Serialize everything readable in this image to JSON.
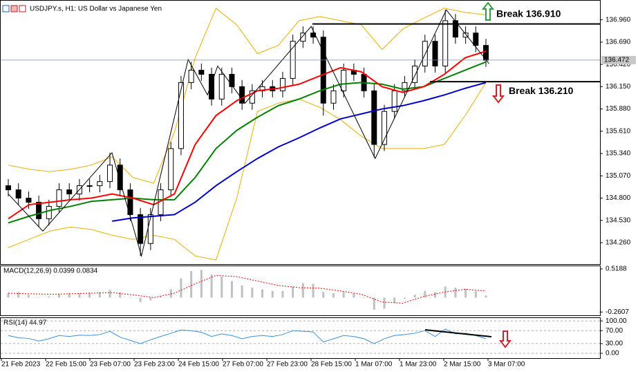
{
  "chart_data": [
    {
      "type": "candlestick",
      "title": "USDJPY.s, H1:  US Dollar vs Japanese Yen",
      "open": [
        134.95,
        134.9,
        134.8,
        134.75,
        134.55,
        134.7,
        134.9,
        134.85,
        134.95,
        134.95,
        135.0,
        135.2,
        134.9,
        134.6,
        134.25,
        134.6,
        134.9,
        135.4,
        136.2,
        136.35,
        136.3,
        136.0,
        136.3,
        136.15,
        135.95,
        136.1,
        136.15,
        136.1,
        136.25,
        136.7,
        136.8,
        136.75,
        135.95,
        136.1,
        136.35,
        136.3,
        136.1,
        135.45,
        135.85,
        136.1,
        136.2,
        136.4,
        136.7,
        136.4,
        136.95,
        136.75,
        136.8,
        136.65
      ],
      "high": [
        135.03,
        134.98,
        134.88,
        134.83,
        134.78,
        134.98,
        134.98,
        135.03,
        135.03,
        135.08,
        135.35,
        135.28,
        134.98,
        134.68,
        134.68,
        134.98,
        135.48,
        136.28,
        136.45,
        136.43,
        136.38,
        136.38,
        136.38,
        136.23,
        136.18,
        136.23,
        136.23,
        136.33,
        136.78,
        136.88,
        136.88,
        136.83,
        136.18,
        136.43,
        136.43,
        136.38,
        136.18,
        135.93,
        136.18,
        136.28,
        136.48,
        136.78,
        136.78,
        137.08,
        137.03,
        136.88,
        136.88,
        136.73
      ],
      "low": [
        134.82,
        134.72,
        134.67,
        134.45,
        134.47,
        134.62,
        134.77,
        134.77,
        134.87,
        134.87,
        134.92,
        134.82,
        134.52,
        134.1,
        134.17,
        134.52,
        134.82,
        135.32,
        136.12,
        136.22,
        135.92,
        135.92,
        136.07,
        135.87,
        135.87,
        136.02,
        136.02,
        136.02,
        136.17,
        136.62,
        136.67,
        135.8,
        135.87,
        136.02,
        136.22,
        136.02,
        135.29,
        135.37,
        135.77,
        136.02,
        136.12,
        136.32,
        136.32,
        136.32,
        136.67,
        136.67,
        136.57,
        136.39
      ],
      "close": [
        134.9,
        134.8,
        134.75,
        134.55,
        134.7,
        134.9,
        134.85,
        134.95,
        134.95,
        135.0,
        135.2,
        134.9,
        134.6,
        134.25,
        134.6,
        134.9,
        135.4,
        136.2,
        136.35,
        136.3,
        136.0,
        136.3,
        136.15,
        135.95,
        136.1,
        136.15,
        136.1,
        136.25,
        136.7,
        136.8,
        136.75,
        135.95,
        136.1,
        136.35,
        136.3,
        136.1,
        135.45,
        135.85,
        136.1,
        136.2,
        136.4,
        136.7,
        136.4,
        136.95,
        136.75,
        136.8,
        136.65,
        136.47
      ],
      "up_color": "#ffffff",
      "down_color": "#000000",
      "series": [
        {
          "color": "#e8b000",
          "values": [
            135.2,
            135.15,
            135.12,
            135.15,
            135.2,
            135.3,
            135.05,
            134.98,
            135.6,
            136.5,
            137.1,
            136.9,
            136.55,
            136.65,
            136.95,
            137.0,
            136.95,
            136.9,
            136.6,
            136.85,
            136.98,
            137.1,
            137.05,
            137.02
          ]
        },
        {
          "color": "#e8b000",
          "values": [
            134.2,
            134.3,
            134.4,
            134.45,
            134.42,
            134.35,
            134.3,
            134.35,
            134.3,
            134.1,
            134.05,
            134.8,
            135.85,
            135.95,
            136.0,
            135.9,
            135.75,
            135.55,
            135.4,
            135.4,
            135.4,
            135.45,
            135.8,
            136.2
          ]
        },
        {
          "color": "#0000c8",
          "values": [
            null,
            null,
            null,
            null,
            null,
            134.52,
            134.56,
            134.58,
            134.6,
            134.75,
            134.95,
            135.12,
            135.28,
            135.42,
            135.53,
            135.65,
            135.76,
            135.82,
            135.88,
            135.92,
            135.98,
            136.05,
            136.13,
            136.2
          ]
        },
        {
          "color": "#008000",
          "values": [
            134.5,
            134.58,
            134.65,
            134.7,
            134.76,
            134.78,
            134.8,
            134.78,
            134.78,
            135.05,
            135.4,
            135.62,
            135.78,
            135.92,
            136.0,
            136.1,
            136.18,
            136.2,
            136.18,
            136.12,
            136.15,
            136.25,
            136.35,
            136.45
          ]
        },
        {
          "color": "#ff0000",
          "values": [
            134.55,
            134.72,
            134.75,
            134.78,
            134.8,
            134.85,
            134.8,
            134.72,
            134.85,
            135.45,
            135.8,
            135.98,
            136.1,
            136.13,
            136.18,
            136.28,
            136.38,
            136.33,
            136.15,
            136.08,
            136.15,
            136.3,
            136.5,
            136.58
          ]
        }
      ],
      "zigzag": {
        "x": [
          0,
          3.4,
          10.2,
          13.1,
          17.7,
          19.6,
          20.6,
          23.3,
          29.8,
          36.1,
          43.1,
          47.3
        ],
        "values": [
          134.85,
          134.4,
          135.35,
          134.1,
          136.48,
          136.05,
          136.4,
          135.95,
          136.88,
          135.28,
          137.08,
          136.43
        ]
      },
      "levels": [
        {
          "value": 136.91,
          "label": "Break 136.910"
        },
        {
          "value": 136.21,
          "label": "Break 136.210"
        }
      ],
      "last_price": {
        "value": 136.472,
        "label": "136.472"
      },
      "ylim": [
        134.0,
        137.2
      ],
      "yticks": [
        {
          "value": 136.96,
          "label": "136.960"
        },
        {
          "value": 136.69,
          "label": "136.690"
        },
        {
          "value": 136.42,
          "label": "136.420"
        },
        {
          "value": 136.15,
          "label": "136.150"
        },
        {
          "value": 135.88,
          "label": "135.880"
        },
        {
          "value": 135.61,
          "label": "135.610"
        },
        {
          "value": 135.34,
          "label": "135.340"
        },
        {
          "value": 135.07,
          "label": "135.070"
        },
        {
          "value": 134.8,
          "label": "134.800"
        },
        {
          "value": 134.53,
          "label": "134.530"
        },
        {
          "value": 134.26,
          "label": "134.260"
        }
      ]
    },
    {
      "type": "bar",
      "title": "MACD(12,26,9) 0.0399 0.0834",
      "values": [
        0.08,
        0.1,
        0.05,
        0.0,
        0.02,
        0.06,
        0.08,
        0.08,
        0.09,
        0.1,
        0.14,
        0.1,
        0.0,
        -0.08,
        -0.05,
        0.02,
        0.15,
        0.35,
        0.48,
        0.5,
        0.42,
        0.38,
        0.3,
        0.22,
        0.18,
        0.15,
        0.12,
        0.12,
        0.2,
        0.26,
        0.25,
        0.1,
        0.08,
        0.1,
        0.08,
        0.0,
        -0.22,
        -0.2,
        -0.1,
        -0.02,
        0.05,
        0.12,
        0.1,
        0.2,
        0.18,
        0.16,
        0.12,
        0.04
      ],
      "color": "#c0c0c0",
      "series": [
        {
          "color": "#e00000",
          "line_style": "dotted",
          "values": [
            0.08,
            0.07,
            0.06,
            0.07,
            0.08,
            0.09,
            0.05,
            0.0,
            0.08,
            0.25,
            0.4,
            0.38,
            0.3,
            0.22,
            0.18,
            0.17,
            0.12,
            0.06,
            -0.08,
            -0.1,
            0.02,
            0.1,
            0.15,
            0.12
          ]
        }
      ],
      "ylim": [
        -0.32,
        0.58
      ],
      "yticks": [
        0.5188,
        -0.2607
      ]
    },
    {
      "type": "line",
      "title": "RSI(14) 44.97",
      "series": [
        {
          "color": "#3a8fd8",
          "values": [
            55,
            48,
            46,
            38,
            45,
            55,
            52,
            56,
            55,
            58,
            68,
            50,
            40,
            30,
            42,
            52,
            62,
            72,
            70,
            65,
            52,
            60,
            55,
            45,
            52,
            55,
            52,
            58,
            70,
            68,
            66,
            35,
            45,
            55,
            52,
            45,
            30,
            45,
            55,
            58,
            62,
            70,
            52,
            75,
            60,
            62,
            55,
            45
          ]
        }
      ],
      "ylim": [
        -15,
        111
      ],
      "yticks": [
        {
          "value": 100,
          "label": "100.00"
        },
        {
          "value": 70,
          "label": "70.00"
        },
        {
          "value": 30,
          "label": "30.00"
        },
        {
          "value": 0,
          "label": "0.00"
        }
      ],
      "grid": true,
      "x_labels": [
        "21 Feb 2023",
        "22 Feb 15:00",
        "23 Feb 07:00",
        "23 Feb 23:00",
        "24 Feb 15:00",
        "27 Feb 07:00",
        "27 Feb 23:00",
        "28 Feb 15:00",
        "1 Mar 07:00",
        "1 Mar 23:00",
        "2 Mar 15:00",
        "3 Mar 07:00"
      ]
    }
  ]
}
